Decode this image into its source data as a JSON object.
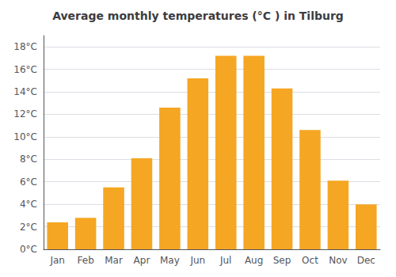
{
  "chart_data": {
    "type": "bar",
    "title": "Average monthly temperatures (°C ) in Tilburg",
    "categories": [
      "Jan",
      "Feb",
      "Mar",
      "Apr",
      "May",
      "Jun",
      "Jul",
      "Aug",
      "Sep",
      "Oct",
      "Nov",
      "Dec"
    ],
    "values": [
      2.4,
      2.8,
      5.5,
      8.1,
      12.6,
      15.2,
      17.2,
      17.2,
      14.3,
      10.6,
      6.1,
      4.0
    ],
    "color": "#F5A623",
    "ylim": [
      0,
      19
    ],
    "yticks": [
      {
        "value": 0,
        "label": "0°C"
      },
      {
        "value": 2,
        "label": "2°C"
      },
      {
        "value": 4,
        "label": "4°C"
      },
      {
        "value": 6,
        "label": "6°C"
      },
      {
        "value": 8,
        "label": "8°C"
      },
      {
        "value": 10,
        "label": "10°C"
      },
      {
        "value": 12,
        "label": "12°C"
      },
      {
        "value": 14,
        "label": "14°C"
      },
      {
        "value": 16,
        "label": "16°C"
      },
      {
        "value": 18,
        "label": "18°C"
      }
    ],
    "grid": true
  }
}
